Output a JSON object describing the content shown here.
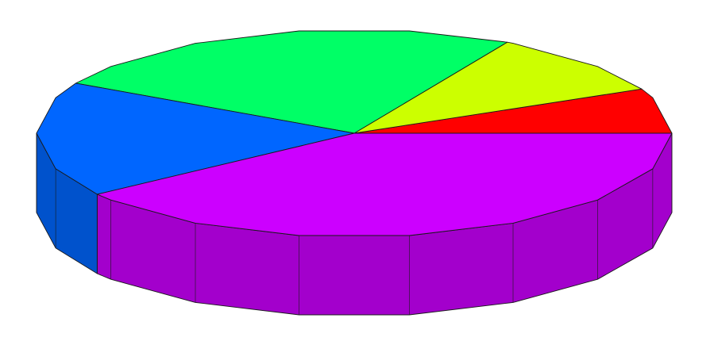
{
  "chart_data": {
    "type": "pie",
    "style": "3d",
    "title": "",
    "legend": "none",
    "grid": false,
    "start_angle_deg": 0,
    "direction": "counterclockwise",
    "series": [
      {
        "values": [
          7,
          10,
          25,
          18,
          40
        ],
        "colors": [
          "#ff0000",
          "#ccff00",
          "#00ff66",
          "#0066ff",
          "#cc00ff"
        ]
      }
    ]
  }
}
